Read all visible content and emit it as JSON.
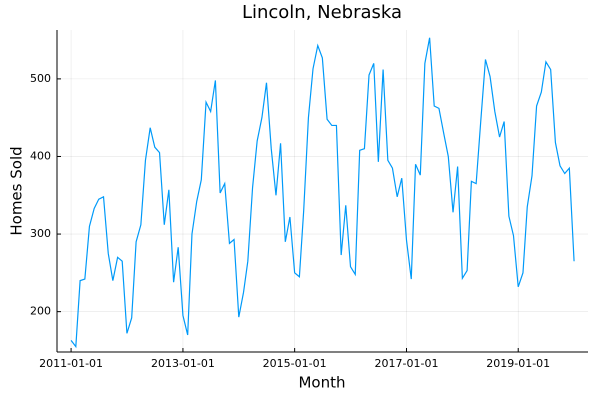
{
  "chart_data": {
    "type": "line",
    "title": "Lincoln, Nebraska",
    "x_label": "Month",
    "y_label": "Homes Sold",
    "x": [
      "2011-01-01",
      "2011-02-01",
      "2011-03-01",
      "2011-04-01",
      "2011-05-01",
      "2011-06-01",
      "2011-07-01",
      "2011-08-01",
      "2011-09-01",
      "2011-10-01",
      "2011-11-01",
      "2011-12-01",
      "2012-01-01",
      "2012-02-01",
      "2012-03-01",
      "2012-04-01",
      "2012-05-01",
      "2012-06-01",
      "2012-07-01",
      "2012-08-01",
      "2012-09-01",
      "2012-10-01",
      "2012-11-01",
      "2012-12-01",
      "2013-01-01",
      "2013-02-01",
      "2013-03-01",
      "2013-04-01",
      "2013-05-01",
      "2013-06-01",
      "2013-07-01",
      "2013-08-01",
      "2013-09-01",
      "2013-10-01",
      "2013-11-01",
      "2013-12-01",
      "2014-01-01",
      "2014-02-01",
      "2014-03-01",
      "2014-04-01",
      "2014-05-01",
      "2014-06-01",
      "2014-07-01",
      "2014-08-01",
      "2014-09-01",
      "2014-10-01",
      "2014-11-01",
      "2014-12-01",
      "2015-01-01",
      "2015-02-01",
      "2015-03-01",
      "2015-04-01",
      "2015-05-01",
      "2015-06-01",
      "2015-07-01",
      "2015-08-01",
      "2015-09-01",
      "2015-10-01",
      "2015-11-01",
      "2015-12-01",
      "2016-01-01",
      "2016-02-01",
      "2016-03-01",
      "2016-04-01",
      "2016-05-01",
      "2016-06-01",
      "2016-07-01",
      "2016-08-01",
      "2016-09-01",
      "2016-10-01",
      "2016-11-01",
      "2016-12-01",
      "2017-01-01",
      "2017-02-01",
      "2017-03-01",
      "2017-04-01",
      "2017-05-01",
      "2017-06-01",
      "2017-07-01",
      "2017-08-01",
      "2017-09-01",
      "2017-10-01",
      "2017-11-01",
      "2017-12-01",
      "2018-01-01",
      "2018-02-01",
      "2018-03-01",
      "2018-04-01",
      "2018-05-01",
      "2018-06-01",
      "2018-07-01",
      "2018-08-01",
      "2018-09-01",
      "2018-10-01",
      "2018-11-01",
      "2018-12-01",
      "2019-01-01",
      "2019-02-01",
      "2019-03-01",
      "2019-04-01",
      "2019-05-01",
      "2019-06-01",
      "2019-07-01",
      "2019-08-01",
      "2019-09-01",
      "2019-10-01",
      "2019-11-01",
      "2019-12-01",
      "2020-01-01"
    ],
    "series": [
      {
        "name": "Homes Sold",
        "color": "#009af9",
        "values": [
          163,
          155,
          240,
          242,
          310,
          333,
          345,
          348,
          275,
          240,
          270,
          265,
          172,
          192,
          290,
          312,
          395,
          437,
          412,
          405,
          312,
          357,
          238,
          283,
          195,
          170,
          300,
          342,
          370,
          470,
          458,
          498,
          353,
          365,
          288,
          293,
          193,
          225,
          265,
          360,
          420,
          450,
          495,
          410,
          350,
          417,
          290,
          322,
          250,
          245,
          330,
          450,
          513,
          543,
          527,
          448,
          440,
          440,
          273,
          337,
          258,
          248,
          408,
          410,
          505,
          520,
          393,
          512,
          395,
          385,
          348,
          372,
          292,
          242,
          390,
          376,
          520,
          553,
          465,
          462,
          430,
          400,
          328,
          387,
          243,
          253,
          368,
          365,
          445,
          525,
          503,
          458,
          425,
          445,
          323,
          298,
          232,
          250,
          335,
          375,
          465,
          483,
          522,
          512,
          418,
          388,
          378,
          385,
          265
        ]
      }
    ],
    "xlim": [
      "2010-10-01",
      "2020-04-01"
    ],
    "xticks": [
      "2011-01-01",
      "2013-01-01",
      "2015-01-01",
      "2017-01-01",
      "2019-01-01"
    ],
    "ylim": [
      148,
      563
    ],
    "yticks": [
      200,
      300,
      400,
      500
    ],
    "grid": true
  }
}
